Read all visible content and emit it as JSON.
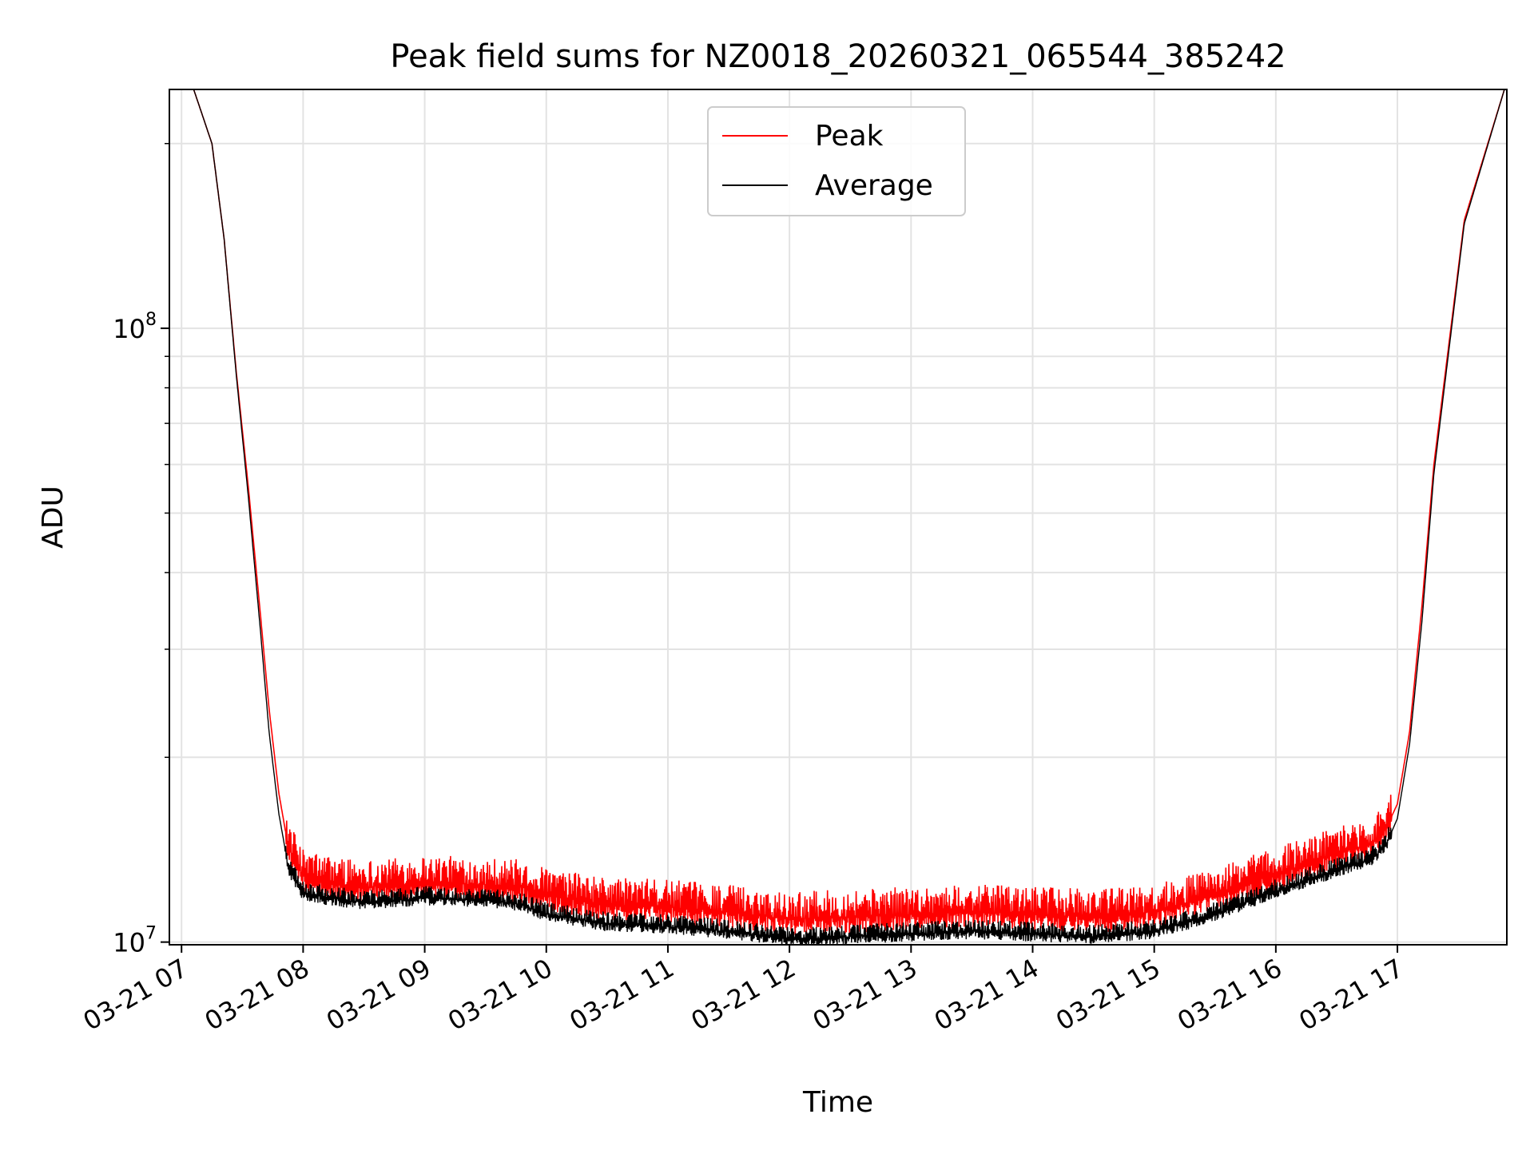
{
  "chart_data": {
    "type": "line",
    "title": "Peak field sums for NZ0018_20260321_065544_385242",
    "xlabel": "Time",
    "ylabel": "ADU",
    "yscale": "log",
    "ylim": [
      9900000,
      245000000
    ],
    "xlim": [
      6.9,
      17.9
    ],
    "grid": true,
    "legend_position": "upper center",
    "x_ticks": [
      {
        "value": 7,
        "label": "03-21 07"
      },
      {
        "value": 8,
        "label": "03-21 08"
      },
      {
        "value": 9,
        "label": "03-21 09"
      },
      {
        "value": 10,
        "label": "03-21 10"
      },
      {
        "value": 11,
        "label": "03-21 11"
      },
      {
        "value": 12,
        "label": "03-21 12"
      },
      {
        "value": 13,
        "label": "03-21 13"
      },
      {
        "value": 14,
        "label": "03-21 14"
      },
      {
        "value": 15,
        "label": "03-21 15"
      },
      {
        "value": 16,
        "label": "03-21 16"
      },
      {
        "value": 17,
        "label": "03-21 17"
      }
    ],
    "y_ticks": [
      {
        "value": 10000000,
        "base": "10",
        "exp": "7"
      },
      {
        "value": 100000000,
        "base": "10",
        "exp": "8"
      }
    ],
    "y_minor_ticks": [
      20000000,
      30000000,
      40000000,
      50000000,
      60000000,
      70000000,
      80000000,
      90000000,
      200000000
    ],
    "series": [
      {
        "name": "Peak",
        "color": "#ff0000",
        "x": [
          6.93,
          7.1,
          7.25,
          7.35,
          7.45,
          7.55,
          7.65,
          7.72,
          7.8,
          7.88,
          8.0,
          8.2,
          8.5,
          8.8,
          9.0,
          9.5,
          9.8,
          10.0,
          10.5,
          11.0,
          11.5,
          12.0,
          12.5,
          13.0,
          13.5,
          14.0,
          14.5,
          15.0,
          15.3,
          15.6,
          15.9,
          16.1,
          16.2,
          16.3,
          16.4,
          16.5,
          16.6,
          16.7,
          16.8,
          16.9,
          17.0,
          17.1,
          17.2,
          17.3,
          17.55,
          17.88
        ],
        "values": [
          245000000,
          245000000,
          200000000,
          140000000,
          85000000,
          55000000,
          34000000,
          24000000,
          17500000,
          14200000,
          12800000,
          12500000,
          12300000,
          12400000,
          12500000,
          12400000,
          12300000,
          11900000,
          11500000,
          11400000,
          11200000,
          10900000,
          11000000,
          11100000,
          11200000,
          11100000,
          11000000,
          11200000,
          11600000,
          12100000,
          12700000,
          13100000,
          13300000,
          13500000,
          13700000,
          13900000,
          14100000,
          14300000,
          14500000,
          15200000,
          16800000,
          22000000,
          35000000,
          60000000,
          150000000,
          245000000
        ]
      },
      {
        "name": "Average",
        "color": "#000000",
        "x": [
          6.93,
          7.1,
          7.25,
          7.35,
          7.45,
          7.55,
          7.65,
          7.72,
          7.8,
          7.88,
          8.0,
          8.2,
          8.5,
          8.8,
          9.0,
          9.5,
          9.8,
          10.0,
          10.5,
          11.0,
          11.5,
          12.0,
          12.5,
          13.0,
          13.5,
          14.0,
          14.5,
          15.0,
          15.3,
          15.6,
          15.9,
          16.1,
          16.2,
          16.3,
          16.4,
          16.5,
          16.6,
          16.7,
          16.8,
          16.9,
          17.0,
          17.1,
          17.2,
          17.3,
          17.55,
          17.88
        ],
        "values": [
          245000000,
          245000000,
          200000000,
          140000000,
          84000000,
          53000000,
          32000000,
          22000000,
          16200000,
          13200000,
          12000000,
          11800000,
          11600000,
          11700000,
          11800000,
          11700000,
          11500000,
          11100000,
          10700000,
          10600000,
          10400000,
          10100000,
          10200000,
          10300000,
          10400000,
          10300000,
          10200000,
          10400000,
          10800000,
          11300000,
          11900000,
          12300000,
          12500000,
          12700000,
          12900000,
          13100000,
          13300000,
          13500000,
          13700000,
          14300000,
          15900000,
          21000000,
          33000000,
          58000000,
          148000000,
          245000000
        ]
      }
    ]
  }
}
